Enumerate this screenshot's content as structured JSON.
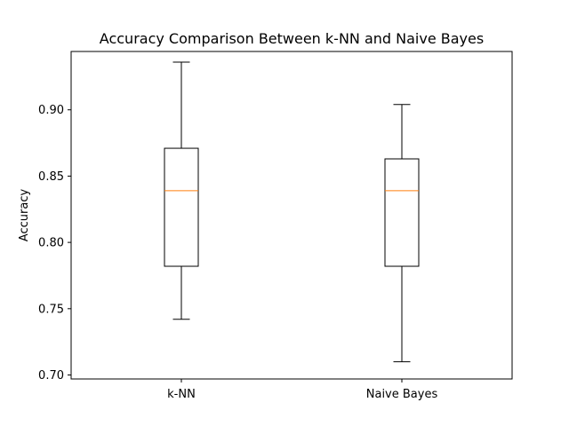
{
  "chart_data": {
    "type": "box",
    "title": "Accuracy Comparison Between k-NN and Naive Bayes",
    "xlabel": "",
    "ylabel": "Accuracy",
    "ylim": [
      0.697,
      0.944
    ],
    "yticks": [
      0.7,
      0.75,
      0.8,
      0.85,
      0.9
    ],
    "ytick_labels": [
      "0.70",
      "0.75",
      "0.80",
      "0.85",
      "0.90"
    ],
    "categories": [
      "k-NN",
      "Naive Bayes"
    ],
    "boxes": [
      {
        "whisker_low": 0.742,
        "q1": 0.782,
        "median": 0.839,
        "q3": 0.871,
        "whisker_high": 0.936
      },
      {
        "whisker_low": 0.71,
        "q1": 0.782,
        "median": 0.839,
        "q3": 0.863,
        "whisker_high": 0.904
      }
    ],
    "grid": false,
    "colors": {
      "box": "#000000",
      "median": "#ff7f0e"
    }
  }
}
